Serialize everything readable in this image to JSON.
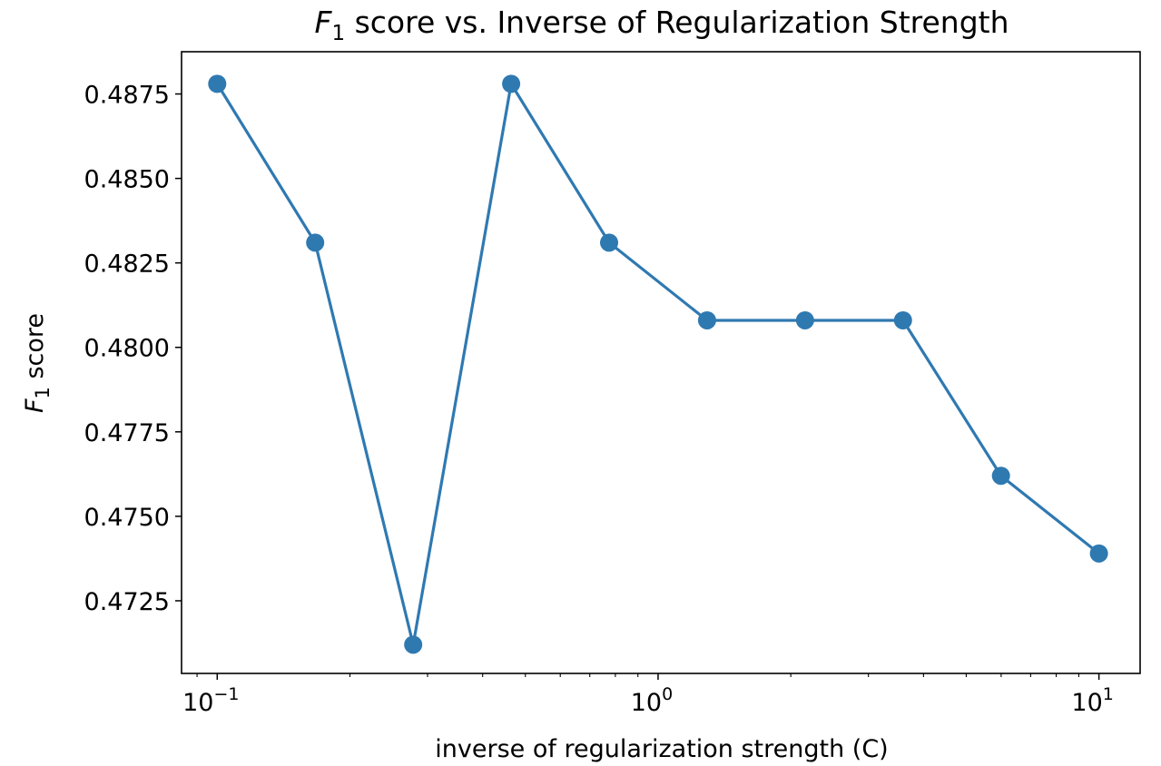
{
  "chart_data": {
    "type": "line",
    "title": {
      "var": "F",
      "sub": "1",
      "rest": " score vs. Inverse of Regularization Strength"
    },
    "xlabel": "inverse of regularization strength (C)",
    "ylabel": {
      "var": "F",
      "sub": "1",
      "rest": " score"
    },
    "x_scale": "log",
    "xlim": [
      0.083,
      12.4
    ],
    "ylim": [
      0.47035,
      0.48875
    ],
    "x_ticks": [
      {
        "value": 0.1,
        "base": "10",
        "exp": "−1"
      },
      {
        "value": 1,
        "base": "10",
        "exp": "0"
      },
      {
        "value": 10,
        "base": "10",
        "exp": "1"
      }
    ],
    "y_ticks": [
      {
        "value": 0.4725,
        "label": "0.4725"
      },
      {
        "value": 0.475,
        "label": "0.4750"
      },
      {
        "value": 0.4775,
        "label": "0.4775"
      },
      {
        "value": 0.48,
        "label": "0.4800"
      },
      {
        "value": 0.4825,
        "label": "0.4825"
      },
      {
        "value": 0.485,
        "label": "0.4850"
      },
      {
        "value": 0.4875,
        "label": "0.4875"
      }
    ],
    "series": [
      {
        "color": "#2f79b1",
        "x": [
          0.1,
          0.1668,
          0.2783,
          0.4642,
          0.7743,
          1.2915,
          2.1544,
          3.5938,
          5.9948,
          10.0
        ],
        "y": [
          0.4878,
          0.4831,
          0.4712,
          0.4878,
          0.4831,
          0.4808,
          0.4808,
          0.4808,
          0.4762,
          0.4739
        ]
      }
    ],
    "grid": false,
    "legend": "none"
  }
}
